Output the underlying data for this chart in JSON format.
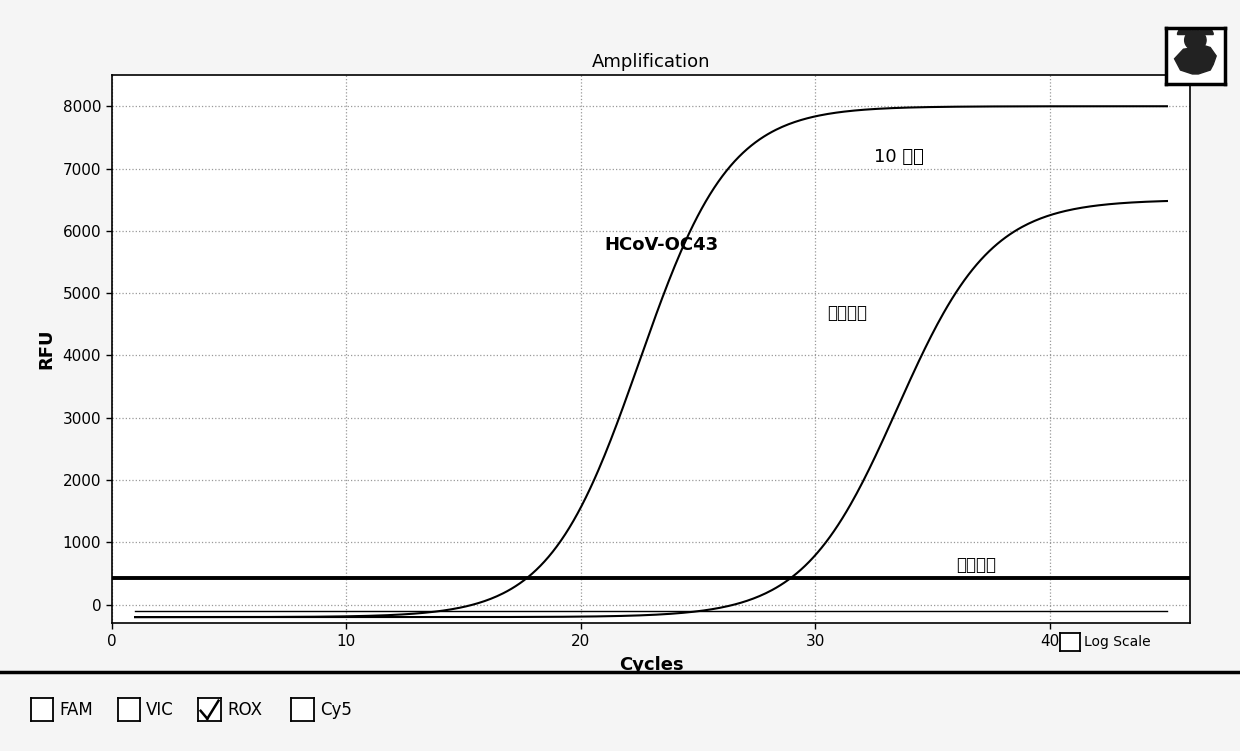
{
  "title": "Amplification",
  "xlabel": "Cycles",
  "ylabel": "RFU",
  "xlim": [
    0,
    46
  ],
  "ylim": [
    -300,
    8500
  ],
  "yticks": [
    0,
    1000,
    2000,
    3000,
    4000,
    5000,
    6000,
    7000,
    8000
  ],
  "xticks": [
    0,
    10,
    20,
    30,
    40
  ],
  "background_color": "#f5f5f5",
  "plot_bg_color": "#ffffff",
  "grid_color": "#999999",
  "curve1_label": "10 拷贝",
  "curve2_label": "HCoV-OC43",
  "annotation_pos": "阳性质控",
  "annotation_neg": "阴性质控",
  "threshold_line_y": 430,
  "curve_color": "#000000",
  "threshold_color": "#000000",
  "footer_items": [
    "FAM",
    "VIC",
    "ROX",
    "Cy5"
  ],
  "footer_checked": [
    false,
    false,
    true,
    false
  ],
  "log_scale_label": "Log Scale",
  "curve1_L": 8200,
  "curve1_x0": 22.5,
  "curve1_k": 0.52,
  "curve1_b": -200,
  "curve2_L": 6700,
  "curve2_x0": 33.5,
  "curve2_k": 0.5,
  "curve2_b": -200,
  "noise_amplitude": 60,
  "noise_base": -100
}
